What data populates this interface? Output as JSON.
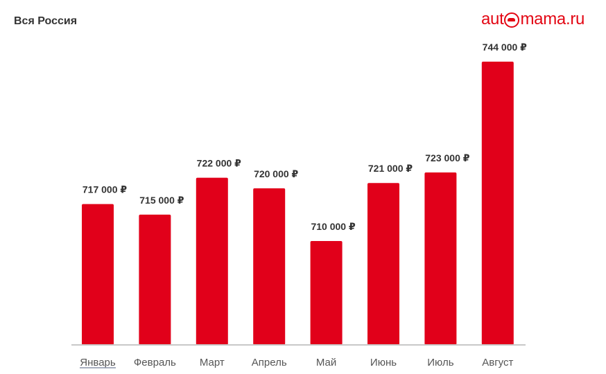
{
  "header": {
    "region": "Вся Россия",
    "logo_left": "aut",
    "logo_right": "mama.ru"
  },
  "colors": {
    "bar": "#e1001a",
    "brand": "#e30613",
    "text": "#333333"
  },
  "chart_data": {
    "type": "bar",
    "categories": [
      "Январь",
      "Февраль",
      "Март",
      "Апрель",
      "Май",
      "Июнь",
      "Июль",
      "Август"
    ],
    "values": [
      717000,
      715000,
      722000,
      720000,
      710000,
      721000,
      723000,
      744000
    ],
    "value_labels": [
      "717 000 ₽",
      "715 000 ₽",
      "722 000 ₽",
      "720 000 ₽",
      "710 000 ₽",
      "721 000 ₽",
      "723 000 ₽",
      "744 000 ₽"
    ],
    "title": "Вся Россия",
    "xlabel": "",
    "ylabel": "",
    "grid": false,
    "y_axis_visible": false
  }
}
